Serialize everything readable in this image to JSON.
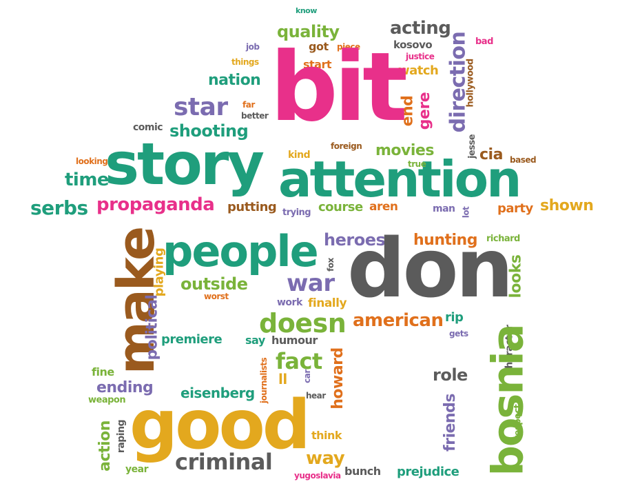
{
  "palette": {
    "magenta": "#e8308a",
    "teal": "#1f9e7c",
    "grey": "#5b5b5b",
    "purple": "#7b6cb0",
    "green": "#7ab33a",
    "orange": "#e0701c",
    "gold": "#e3a81e",
    "brown": "#9a5a1e"
  },
  "words": [
    {
      "text": "know",
      "color": "teal"
    },
    {
      "text": "quality",
      "color": "green"
    },
    {
      "text": "acting",
      "color": "grey"
    },
    {
      "text": "job",
      "color": "purple"
    },
    {
      "text": "got",
      "color": "brown"
    },
    {
      "text": "piece",
      "color": "orange"
    },
    {
      "text": "kosovo",
      "color": "grey"
    },
    {
      "text": "bad",
      "color": "magenta"
    },
    {
      "text": "things",
      "color": "gold"
    },
    {
      "text": "start",
      "color": "orange"
    },
    {
      "text": "justice",
      "color": "magenta"
    },
    {
      "text": "watch",
      "color": "gold"
    },
    {
      "text": "nation",
      "color": "teal"
    },
    {
      "text": "bit",
      "color": "magenta"
    },
    {
      "text": "direction",
      "color": "purple"
    },
    {
      "text": "hollywood",
      "color": "brown"
    },
    {
      "text": "star",
      "color": "purple"
    },
    {
      "text": "far",
      "color": "orange"
    },
    {
      "text": "better",
      "color": "grey"
    },
    {
      "text": "comic",
      "color": "grey"
    },
    {
      "text": "shooting",
      "color": "teal"
    },
    {
      "text": "end",
      "color": "orange"
    },
    {
      "text": "gere",
      "color": "magenta"
    },
    {
      "text": "jesse",
      "color": "grey"
    },
    {
      "text": "kind",
      "color": "gold"
    },
    {
      "text": "foreign",
      "color": "brown"
    },
    {
      "text": "movies",
      "color": "green"
    },
    {
      "text": "cia",
      "color": "brown"
    },
    {
      "text": "based",
      "color": "brown"
    },
    {
      "text": "looking",
      "color": "orange"
    },
    {
      "text": "story",
      "color": "teal"
    },
    {
      "text": "attention",
      "color": "teal"
    },
    {
      "text": "true",
      "color": "green"
    },
    {
      "text": "time",
      "color": "teal"
    },
    {
      "text": "serbs",
      "color": "teal"
    },
    {
      "text": "propaganda",
      "color": "magenta"
    },
    {
      "text": "putting",
      "color": "brown"
    },
    {
      "text": "trying",
      "color": "purple"
    },
    {
      "text": "course",
      "color": "green"
    },
    {
      "text": "aren",
      "color": "orange"
    },
    {
      "text": "man",
      "color": "purple"
    },
    {
      "text": "lot",
      "color": "purple"
    },
    {
      "text": "party",
      "color": "orange"
    },
    {
      "text": "shown",
      "color": "gold"
    },
    {
      "text": "make",
      "color": "brown"
    },
    {
      "text": "people",
      "color": "teal"
    },
    {
      "text": "heroes",
      "color": "purple"
    },
    {
      "text": "hunting",
      "color": "orange"
    },
    {
      "text": "richard",
      "color": "green"
    },
    {
      "text": "playing",
      "color": "gold"
    },
    {
      "text": "outside",
      "color": "green"
    },
    {
      "text": "fox",
      "color": "grey"
    },
    {
      "text": "don",
      "color": "grey"
    },
    {
      "text": "looks",
      "color": "green"
    },
    {
      "text": "war",
      "color": "purple"
    },
    {
      "text": "political",
      "color": "purple"
    },
    {
      "text": "worst",
      "color": "orange"
    },
    {
      "text": "work",
      "color": "purple"
    },
    {
      "text": "finally",
      "color": "gold"
    },
    {
      "text": "doesn",
      "color": "green"
    },
    {
      "text": "american",
      "color": "orange"
    },
    {
      "text": "rip",
      "color": "teal"
    },
    {
      "text": "character",
      "color": "grey"
    },
    {
      "text": "premiere",
      "color": "teal"
    },
    {
      "text": "say",
      "color": "teal"
    },
    {
      "text": "humour",
      "color": "grey"
    },
    {
      "text": "gets",
      "color": "purple"
    },
    {
      "text": "bosnia",
      "color": "green"
    },
    {
      "text": "fact",
      "color": "green"
    },
    {
      "text": "howard",
      "color": "orange"
    },
    {
      "text": "fine",
      "color": "green"
    },
    {
      "text": "journalists",
      "color": "orange"
    },
    {
      "text": "ll",
      "color": "gold"
    },
    {
      "text": "car",
      "color": "purple"
    },
    {
      "text": "role",
      "color": "grey"
    },
    {
      "text": "ending",
      "color": "purple"
    },
    {
      "text": "weapon",
      "color": "green"
    },
    {
      "text": "eisenberg",
      "color": "teal"
    },
    {
      "text": "hear",
      "color": "grey"
    },
    {
      "text": "respect",
      "color": "green"
    },
    {
      "text": "friends",
      "color": "purple"
    },
    {
      "text": "good",
      "color": "gold"
    },
    {
      "text": "action",
      "color": "green"
    },
    {
      "text": "raping",
      "color": "grey"
    },
    {
      "text": "think",
      "color": "gold"
    },
    {
      "text": "criminal",
      "color": "grey"
    },
    {
      "text": "way",
      "color": "gold"
    },
    {
      "text": "year",
      "color": "green"
    },
    {
      "text": "yugoslavia",
      "color": "magenta"
    },
    {
      "text": "bunch",
      "color": "grey"
    },
    {
      "text": "prejudice",
      "color": "teal"
    }
  ]
}
